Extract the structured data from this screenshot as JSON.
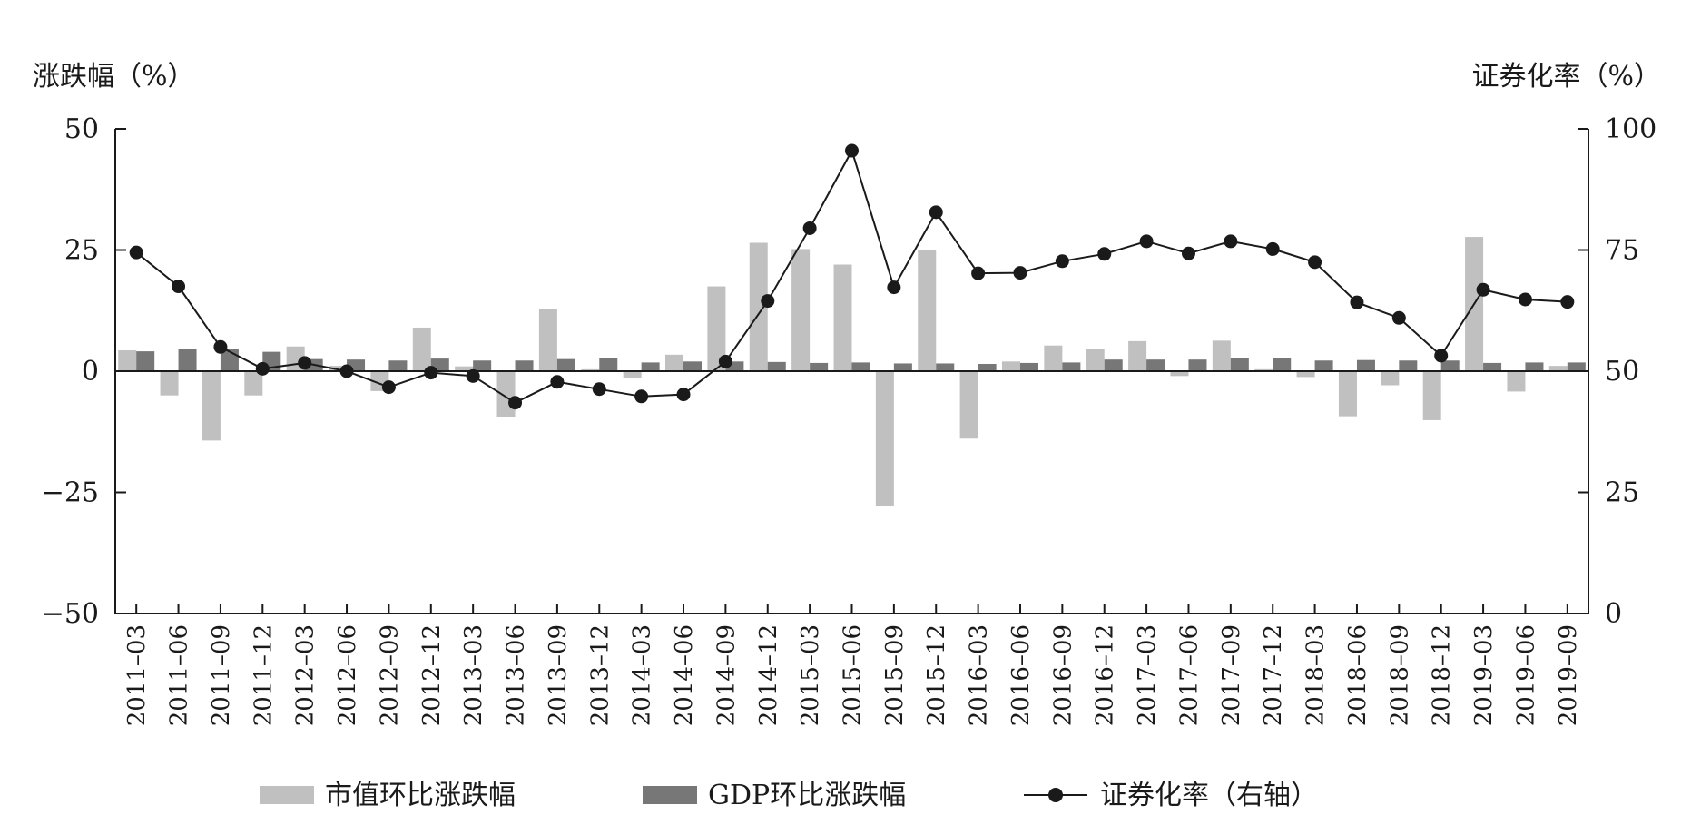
{
  "chart_data": {
    "type": "bar",
    "title": "",
    "ylabel_left": "涨跌幅（%）",
    "ylabel_right": "证券化率（%）",
    "ylim_left": [
      -50,
      50
    ],
    "yticks_left": [
      "50",
      "25",
      "0",
      "−25",
      "−50"
    ],
    "ylim_right": [
      0,
      100
    ],
    "yticks_right": [
      "100",
      "75",
      "50",
      "25",
      "0"
    ],
    "categories": [
      "2011–03",
      "2011–06",
      "2011–09",
      "2011–12",
      "2012–03",
      "2012–06",
      "2012–09",
      "2012–12",
      "2013–03",
      "2013–06",
      "2013–09",
      "2013–12",
      "2014–03",
      "2014–06",
      "2014–09",
      "2014–12",
      "2015–03",
      "2015–06",
      "2015–09",
      "2015–12",
      "2016–03",
      "2016–06",
      "2016–09",
      "2016–12",
      "2017–03",
      "2017–06",
      "2017–09",
      "2017–12",
      "2018–03",
      "2018–06",
      "2018–09",
      "2018–12",
      "2019–03",
      "2019–06",
      "2019–09"
    ],
    "series": [
      {
        "name": "市值环比涨跌幅",
        "type": "bar",
        "axis": "left",
        "color": "#c0c0c0",
        "values": [
          4.3,
          -5.0,
          -14.3,
          -5.0,
          5.1,
          1.1,
          -4.1,
          9.0,
          1.0,
          -9.4,
          12.9,
          0.4,
          -1.4,
          3.4,
          17.5,
          26.5,
          25.2,
          22.0,
          -27.8,
          25.0,
          -13.9,
          2.0,
          5.3,
          4.6,
          6.2,
          -1.0,
          6.3,
          0.4,
          -1.2,
          -9.3,
          -2.9,
          -10.1,
          27.7,
          -4.2,
          1.1
        ]
      },
      {
        "name": "GDP环比涨跌幅",
        "type": "bar",
        "axis": "left",
        "color": "#777777",
        "values": [
          4.1,
          4.6,
          4.6,
          4.0,
          2.5,
          2.4,
          2.2,
          2.6,
          2.2,
          2.2,
          2.5,
          2.7,
          1.8,
          2.0,
          2.0,
          1.9,
          1.7,
          1.8,
          1.6,
          1.6,
          1.5,
          1.7,
          1.8,
          2.4,
          2.4,
          2.4,
          2.7,
          2.7,
          2.2,
          2.3,
          2.2,
          2.2,
          1.7,
          1.8,
          1.8
        ]
      },
      {
        "name": "证券化率（右轴）",
        "type": "line",
        "axis": "right",
        "color": "#1a1a1a",
        "values": [
          74.5,
          67.5,
          55.0,
          50.5,
          51.7,
          50.0,
          46.7,
          49.7,
          49.0,
          43.5,
          47.8,
          46.3,
          44.8,
          45.2,
          52.0,
          64.5,
          79.5,
          95.5,
          67.3,
          82.8,
          70.2,
          70.3,
          72.7,
          74.2,
          76.8,
          74.3,
          76.8,
          75.2,
          72.5,
          64.2,
          61.0,
          53.2,
          66.8,
          64.8,
          64.3
        ]
      }
    ],
    "grid": false,
    "legend_position": "bottom"
  }
}
